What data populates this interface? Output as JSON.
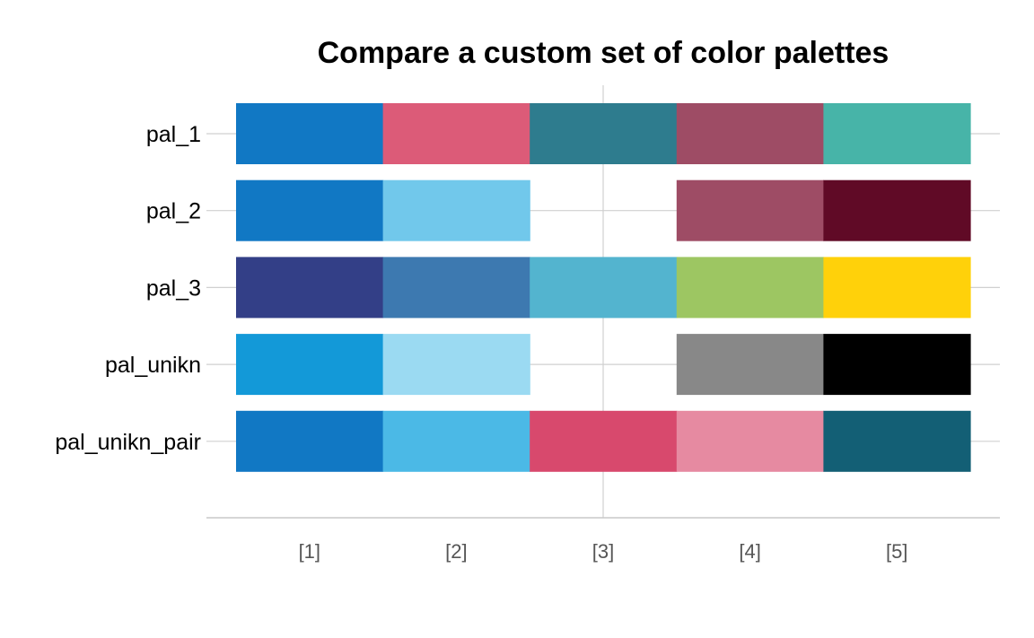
{
  "chart_data": {
    "type": "heatmap",
    "title": "Compare a custom set of color palettes",
    "xlabel": "",
    "ylabel": "",
    "x": [
      "[1]",
      "[2]",
      "[3]",
      "[4]",
      "[5]"
    ],
    "grid": true,
    "legend": "none",
    "series": [
      {
        "name": "pal_1",
        "colors": [
          "#1178C4",
          "#DC5B78",
          "#2E7C8E",
          "#9E4C65",
          "#47B4A8"
        ]
      },
      {
        "name": "pal_2",
        "colors": [
          "#1178C4",
          "#71C8EB",
          "#FFFFFF",
          "#9E4C65",
          "#600A26"
        ]
      },
      {
        "name": "pal_3",
        "colors": [
          "#333F87",
          "#3D79B0",
          "#53B4CF",
          "#9DC662",
          "#FFD10A"
        ]
      },
      {
        "name": "pal_unikn",
        "colors": [
          "#1399D8",
          "#9BDAF2",
          "#FFFFFF",
          "#888888",
          "#000000"
        ]
      },
      {
        "name": "pal_unikn_pair",
        "colors": [
          "#1178C4",
          "#4BB9E6",
          "#D8496D",
          "#E68AA1",
          "#135F75"
        ]
      }
    ]
  }
}
